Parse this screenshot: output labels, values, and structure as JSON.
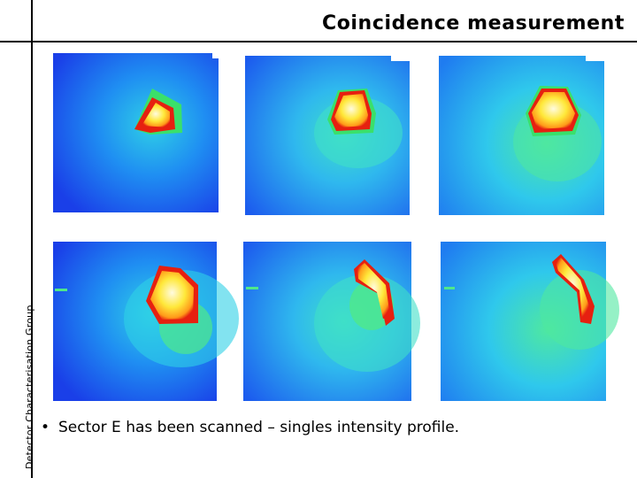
{
  "slide": {
    "title": "Coincidence measurement",
    "side_label": "Detector Characterisation Group",
    "bullets": [
      "Sector E has been scanned – singles intensity profile."
    ]
  },
  "images": {
    "count": 6,
    "layout": "2 rows x 3 columns",
    "content": "detector scan intensity maps",
    "colormap": [
      "#1a3fe8",
      "#1f8ff2",
      "#2fd0e6",
      "#4fe88a",
      "#ffe83a",
      "#ff9a1a",
      "#e62010"
    ]
  }
}
